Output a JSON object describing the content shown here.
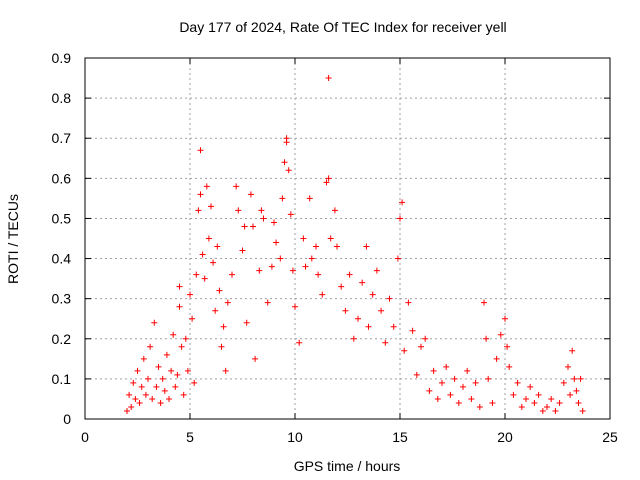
{
  "chart_data": {
    "type": "scatter",
    "title": "Day 177 of 2024, Rate Of TEC Index for receiver yell",
    "xlabel": "GPS time / hours",
    "ylabel": "ROTI / TECUs",
    "xlim": [
      0,
      25
    ],
    "ylim": [
      0,
      0.9
    ],
    "xticks": [
      "0",
      "5",
      "10",
      "15",
      "20",
      "25"
    ],
    "yticks": [
      "0",
      "0.1",
      "0.2",
      "0.3",
      "0.4",
      "0.5",
      "0.6",
      "0.7",
      "0.8",
      "0.9"
    ],
    "grid": true,
    "marker": "+",
    "color": "#ff0000",
    "series": [
      {
        "values": [
          [
            2.0,
            0.02
          ],
          [
            2.1,
            0.06
          ],
          [
            2.2,
            0.03
          ],
          [
            2.3,
            0.09
          ],
          [
            2.4,
            0.05
          ],
          [
            2.5,
            0.12
          ],
          [
            2.6,
            0.04
          ],
          [
            2.7,
            0.08
          ],
          [
            2.8,
            0.15
          ],
          [
            2.9,
            0.06
          ],
          [
            3.0,
            0.1
          ],
          [
            3.1,
            0.18
          ],
          [
            3.2,
            0.05
          ],
          [
            3.3,
            0.24
          ],
          [
            3.4,
            0.08
          ],
          [
            3.5,
            0.13
          ],
          [
            3.6,
            0.04
          ],
          [
            3.7,
            0.1
          ],
          [
            3.8,
            0.07
          ],
          [
            3.9,
            0.16
          ],
          [
            4.0,
            0.05
          ],
          [
            4.1,
            0.12
          ],
          [
            4.2,
            0.21
          ],
          [
            4.3,
            0.08
          ],
          [
            4.4,
            0.11
          ],
          [
            4.5,
            0.33
          ],
          [
            4.5,
            0.28
          ],
          [
            4.6,
            0.18
          ],
          [
            4.7,
            0.06
          ],
          [
            4.8,
            0.2
          ],
          [
            4.9,
            0.12
          ],
          [
            5.0,
            0.31
          ],
          [
            5.1,
            0.25
          ],
          [
            5.2,
            0.09
          ],
          [
            5.3,
            0.36
          ],
          [
            5.4,
            0.52
          ],
          [
            5.5,
            0.56
          ],
          [
            5.5,
            0.67
          ],
          [
            5.6,
            0.41
          ],
          [
            5.7,
            0.35
          ],
          [
            5.8,
            0.58
          ],
          [
            5.9,
            0.45
          ],
          [
            6.0,
            0.53
          ],
          [
            6.1,
            0.39
          ],
          [
            6.2,
            0.27
          ],
          [
            6.3,
            0.43
          ],
          [
            6.4,
            0.32
          ],
          [
            6.5,
            0.18
          ],
          [
            6.6,
            0.23
          ],
          [
            6.7,
            0.12
          ],
          [
            6.8,
            0.29
          ],
          [
            7.0,
            0.36
          ],
          [
            7.2,
            0.58
          ],
          [
            7.3,
            0.52
          ],
          [
            7.5,
            0.42
          ],
          [
            7.6,
            0.48
          ],
          [
            7.7,
            0.24
          ],
          [
            7.9,
            0.56
          ],
          [
            8.0,
            0.48
          ],
          [
            8.1,
            0.15
          ],
          [
            8.3,
            0.37
          ],
          [
            8.4,
            0.52
          ],
          [
            8.5,
            0.5
          ],
          [
            8.7,
            0.29
          ],
          [
            8.9,
            0.38
          ],
          [
            9.0,
            0.49
          ],
          [
            9.1,
            0.44
          ],
          [
            9.3,
            0.4
          ],
          [
            9.4,
            0.55
          ],
          [
            9.5,
            0.64
          ],
          [
            9.6,
            0.7
          ],
          [
            9.6,
            0.69
          ],
          [
            9.7,
            0.62
          ],
          [
            9.8,
            0.51
          ],
          [
            9.9,
            0.37
          ],
          [
            10.0,
            0.28
          ],
          [
            10.2,
            0.19
          ],
          [
            10.4,
            0.45
          ],
          [
            10.5,
            0.38
          ],
          [
            10.7,
            0.55
          ],
          [
            10.8,
            0.4
          ],
          [
            11.0,
            0.43
          ],
          [
            11.1,
            0.36
          ],
          [
            11.3,
            0.31
          ],
          [
            11.5,
            0.59
          ],
          [
            11.6,
            0.6
          ],
          [
            11.6,
            0.85
          ],
          [
            11.7,
            0.45
          ],
          [
            11.9,
            0.52
          ],
          [
            12.0,
            0.43
          ],
          [
            12.2,
            0.33
          ],
          [
            12.4,
            0.27
          ],
          [
            12.6,
            0.36
          ],
          [
            12.8,
            0.2
          ],
          [
            13.0,
            0.25
          ],
          [
            13.2,
            0.34
          ],
          [
            13.4,
            0.43
          ],
          [
            13.5,
            0.23
          ],
          [
            13.7,
            0.31
          ],
          [
            13.9,
            0.37
          ],
          [
            14.1,
            0.27
          ],
          [
            14.3,
            0.19
          ],
          [
            14.5,
            0.3
          ],
          [
            14.7,
            0.23
          ],
          [
            14.9,
            0.4
          ],
          [
            15.0,
            0.5
          ],
          [
            15.1,
            0.54
          ],
          [
            15.2,
            0.17
          ],
          [
            15.4,
            0.29
          ],
          [
            15.6,
            0.22
          ],
          [
            15.8,
            0.11
          ],
          [
            16.0,
            0.18
          ],
          [
            16.2,
            0.2
          ],
          [
            16.4,
            0.07
          ],
          [
            16.6,
            0.12
          ],
          [
            16.8,
            0.05
          ],
          [
            17.0,
            0.09
          ],
          [
            17.2,
            0.13
          ],
          [
            17.4,
            0.06
          ],
          [
            17.6,
            0.1
          ],
          [
            17.8,
            0.04
          ],
          [
            18.0,
            0.08
          ],
          [
            18.2,
            0.12
          ],
          [
            18.4,
            0.05
          ],
          [
            18.6,
            0.09
          ],
          [
            18.8,
            0.03
          ],
          [
            19.0,
            0.29
          ],
          [
            19.1,
            0.2
          ],
          [
            19.2,
            0.1
          ],
          [
            19.4,
            0.04
          ],
          [
            19.6,
            0.15
          ],
          [
            19.8,
            0.21
          ],
          [
            20.0,
            0.25
          ],
          [
            20.1,
            0.18
          ],
          [
            20.2,
            0.13
          ],
          [
            20.4,
            0.06
          ],
          [
            20.6,
            0.09
          ],
          [
            20.8,
            0.03
          ],
          [
            21.0,
            0.05
          ],
          [
            21.2,
            0.08
          ],
          [
            21.4,
            0.04
          ],
          [
            21.6,
            0.06
          ],
          [
            21.8,
            0.02
          ],
          [
            22.0,
            0.03
          ],
          [
            22.2,
            0.05
          ],
          [
            22.4,
            0.02
          ],
          [
            22.6,
            0.04
          ],
          [
            22.8,
            0.09
          ],
          [
            23.0,
            0.13
          ],
          [
            23.1,
            0.06
          ],
          [
            23.2,
            0.17
          ],
          [
            23.3,
            0.1
          ],
          [
            23.4,
            0.07
          ],
          [
            23.5,
            0.04
          ],
          [
            23.6,
            0.1
          ],
          [
            23.7,
            0.02
          ]
        ]
      }
    ]
  }
}
